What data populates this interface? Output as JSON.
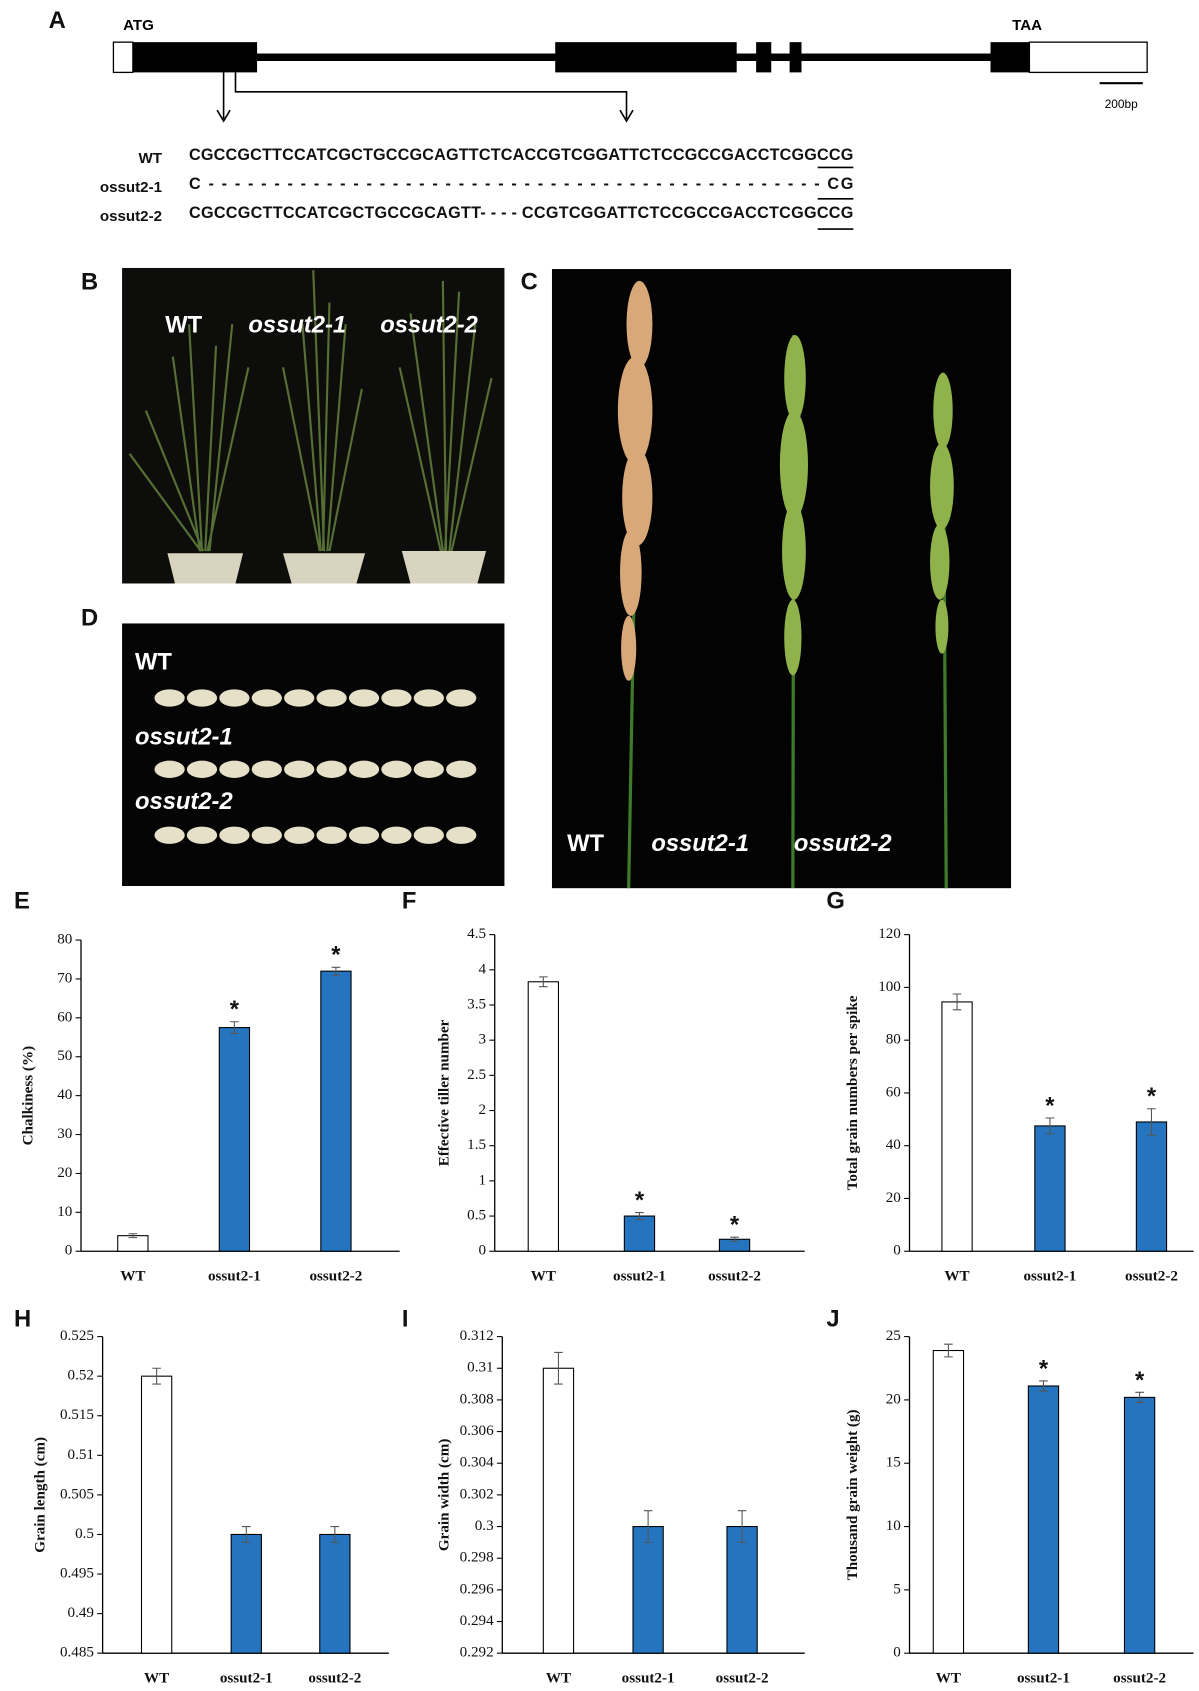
{
  "figure": {
    "panel_a": {
      "label": "A",
      "start_codon": "ATG",
      "stop_codon": "TAA",
      "scale": "200bp",
      "sequences": [
        {
          "name": "WT",
          "seq": "CGCCGCTTCCATCGCTGCCGCAGTTCTCACCGTCGGATTCTCCGCCGACCTCGGCCG"
        },
        {
          "name": "ossut2-1",
          "seq": "C - - - - - - - - - - - - - - - - - - - - - - - - - - - - - - - - - - - - - - - - - - - - - - - CG"
        },
        {
          "name": "ossut2-2",
          "seq": "CGCCGCTTCCATCGCTGCCGCAGTT- - - -  CCGTCGGATTCTCCGCCGACCTCGGCCG"
        }
      ]
    },
    "panel_b": {
      "label": "B",
      "labels": [
        "WT",
        "ossut2-1",
        "ossut2-2"
      ]
    },
    "panel_c": {
      "label": "C",
      "labels": [
        "WT",
        "ossut2-1",
        "ossut2-2"
      ]
    },
    "panel_d": {
      "label": "D",
      "labels": [
        "WT",
        "ossut2-1",
        "ossut2-2"
      ]
    }
  },
  "chart_data": [
    {
      "type": "bar",
      "label": "E",
      "ylabel": "Chalkiness (%)",
      "categories": [
        "WT",
        "ossut2-1",
        "ossut2-2"
      ],
      "values": [
        4,
        57.5,
        72
      ],
      "errors": [
        0.5,
        1.5,
        1
      ],
      "colors": [
        "#ffffff",
        "#2474c0",
        "#2474c0"
      ],
      "significance": [
        null,
        "*",
        "*"
      ],
      "ylim": [
        0,
        80
      ],
      "yticks": [
        0,
        10,
        20,
        30,
        40,
        50,
        60,
        70,
        80
      ]
    },
    {
      "type": "bar",
      "label": "F",
      "ylabel": "Effective tiller number",
      "categories": [
        "WT",
        "ossut2-1",
        "ossut2-2"
      ],
      "values": [
        3.83,
        0.5,
        0.17
      ],
      "errors": [
        0.07,
        0.05,
        0.03
      ],
      "colors": [
        "#ffffff",
        "#2474c0",
        "#2474c0"
      ],
      "significance": [
        null,
        "*",
        "*"
      ],
      "ylim": [
        0,
        4.5
      ],
      "yticks": [
        0,
        0.5,
        1,
        1.5,
        2,
        2.5,
        3,
        3.5,
        4,
        4.5
      ]
    },
    {
      "type": "bar",
      "label": "G",
      "ylabel": "Total grain numbers per spike",
      "categories": [
        "WT",
        "ossut2-1",
        "ossut2-2"
      ],
      "values": [
        94.5,
        47.5,
        49
      ],
      "errors": [
        3,
        3,
        5
      ],
      "colors": [
        "#ffffff",
        "#2474c0",
        "#2474c0"
      ],
      "significance": [
        null,
        "*",
        "*"
      ],
      "ylim": [
        0,
        120
      ],
      "yticks": [
        0,
        20,
        40,
        60,
        80,
        100,
        120
      ]
    },
    {
      "type": "bar",
      "label": "H",
      "ylabel": "Grain length (cm)",
      "categories": [
        "WT",
        "ossut2-1",
        "ossut2-2"
      ],
      "values": [
        0.52,
        0.5,
        0.5
      ],
      "errors": [
        0.001,
        0.001,
        0.001
      ],
      "colors": [
        "#ffffff",
        "#2474c0",
        "#2474c0"
      ],
      "ylim": [
        0.485,
        0.525
      ],
      "yticks": [
        0.485,
        0.49,
        0.495,
        0.5,
        0.505,
        0.51,
        0.515,
        0.52,
        0.525
      ]
    },
    {
      "type": "bar",
      "label": "I",
      "ylabel": "Grain width (cm)",
      "categories": [
        "WT",
        "ossut2-1",
        "ossut2-2"
      ],
      "values": [
        0.31,
        0.3,
        0.3
      ],
      "errors": [
        0.001,
        0.001,
        0.001
      ],
      "colors": [
        "#ffffff",
        "#2474c0",
        "#2474c0"
      ],
      "ylim": [
        0.292,
        0.312
      ],
      "yticks": [
        0.292,
        0.294,
        0.296,
        0.298,
        0.3,
        0.302,
        0.304,
        0.306,
        0.308,
        0.31,
        0.312
      ]
    },
    {
      "type": "bar",
      "label": "J",
      "ylabel": "Thousand grain weight (g)",
      "categories": [
        "WT",
        "ossut2-1",
        "ossut2-2"
      ],
      "values": [
        23.9,
        21.1,
        20.2
      ],
      "errors": [
        0.5,
        0.4,
        0.4
      ],
      "colors": [
        "#ffffff",
        "#2474c0",
        "#2474c0"
      ],
      "significance": [
        null,
        "*",
        "*"
      ],
      "ylim": [
        0,
        25
      ],
      "yticks": [
        0,
        5,
        10,
        15,
        20,
        25
      ]
    }
  ]
}
